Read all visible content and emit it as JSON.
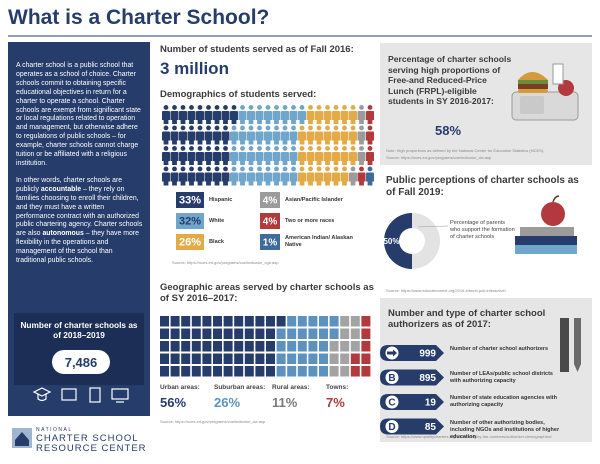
{
  "title": "What is a Charter School?",
  "sidebar": {
    "paragraph1": "A charter school is a public school that operates as a school of choice. Charter schools commit to obtaining specific educational objectives in return for a charter to operate a school. Charter schools are exempt from significant state or local regulations related to operation and management, but otherwise adhere to regulations of public schools – for example, charter schools cannot charge tuition or be affiliated with a religious institution.",
    "paragraph2": [
      "In other words, charter schools are publicly ",
      "accountable",
      " – they rely on families choosing to enroll their children, and they must have a written performance contract with an authorized public chartering agency. Charter schools are also ",
      "autonomous",
      " – they have more flexibility in the operations and management of the school than traditional public schools."
    ],
    "count_label": "Number of charter schools as of 2018–2019",
    "count_value": "7,486"
  },
  "students": {
    "heading": "Number of students served as of Fall 2016:",
    "total": "3 million",
    "demographics_heading": "Demographics of students served:",
    "groups": [
      {
        "name": "Hispanic",
        "value": 33,
        "label": "33%",
        "color": "#263c6b"
      },
      {
        "name": "White",
        "value": 32,
        "label": "32%",
        "color": "#6fa6c9"
      },
      {
        "name": "Black",
        "value": 26,
        "label": "26%",
        "color": "#e3aa48"
      },
      {
        "name": "Asian/Pacific Islander",
        "value": 4,
        "label": "4%",
        "color": "#9b9b9b"
      },
      {
        "name": "Two or more races",
        "value": 4,
        "label": "4%",
        "color": "#b23a3c"
      },
      {
        "name": "American Indian/ Alaskan Native",
        "value": 1,
        "label": "1%",
        "color": "#3f6a9c"
      }
    ],
    "source": "Source: https://nces.ed.gov/programs/coe/indicator_cgb.asp"
  },
  "geography": {
    "heading": "Geographic areas served by charter schools as of SY 2016–2017:",
    "areas": [
      {
        "name": "Urban areas:",
        "value": 56,
        "label": "56%",
        "color": "#263c6b"
      },
      {
        "name": "Suburban areas:",
        "value": 26,
        "label": "26%",
        "color": "#5d92bf"
      },
      {
        "name": "Rural areas:",
        "value": 11,
        "label": "11%",
        "color": "#a3a3a3"
      },
      {
        "name": "Towns:",
        "value": 7,
        "label": "7%",
        "color": "#b23a3c"
      }
    ],
    "source": "Source: https://nces.ed.gov/programs/coe/indicator_cla.asp"
  },
  "frpl": {
    "heading": "Percentage of charter schools serving high proportions of Free-and Reduced-Price Lunch (FRPL)-eligible students in SY 2016-2017:",
    "value": "58%",
    "note": "Note: High proportions as defined by the National Center for Education Statistics (NCES).",
    "source": "Source: https://nces.ed.gov/programs/coe/indicator_cla.asp"
  },
  "perceptions": {
    "heading": "Public perceptions of charter schools as of Fall 2019:",
    "value": 50,
    "label": "50%",
    "caption": "Percentage of parents who support the formation of charter schools",
    "source": "Source: https://www.educationnext.org/2019-ednext-poll-interactive/"
  },
  "authorizers": {
    "heading": "Number and type of charter school authorizers as of 2017:",
    "items": [
      {
        "value": "999",
        "description": "Number of charter school authorizers"
      },
      {
        "letter": "B",
        "value": "895",
        "description": "Number of LEAs/public school districts with authorizing capacity"
      },
      {
        "letter": "C",
        "value": "19",
        "description": "Number of state education agencies with authorizing capacity"
      },
      {
        "letter": "D",
        "value": "85",
        "description": "Number of other authorizing bodies, including NGOs and institutions of higher education"
      }
    ],
    "source": "Source: https://www.qualitycharters.org/authorizing/by-the-numbers/authorizer-demographics/"
  },
  "logo": {
    "line1": "NATIONAL",
    "line2": "CHARTER SCHOOL",
    "line3": "RESOURCE CENTER"
  }
}
